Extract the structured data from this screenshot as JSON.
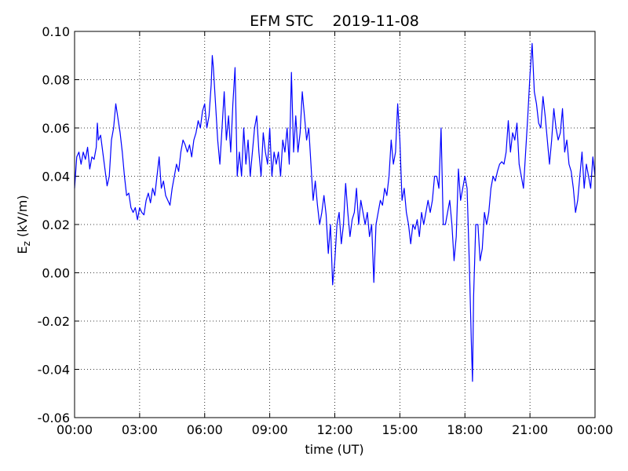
{
  "chart_data": {
    "type": "line",
    "title": "EFM STC    2019-11-08",
    "xlabel": "time (UT)",
    "ylabel": {
      "base": "E",
      "sub": "z",
      "rest": " (kV/m)"
    },
    "color": "#0000ff",
    "grid": true,
    "xlim": [
      0,
      24
    ],
    "xticks": [
      {
        "value": 0,
        "label": "00:00"
      },
      {
        "value": 3,
        "label": "03:00"
      },
      {
        "value": 6,
        "label": "06:00"
      },
      {
        "value": 9,
        "label": "09:00"
      },
      {
        "value": 12,
        "label": "12:00"
      },
      {
        "value": 15,
        "label": "15:00"
      },
      {
        "value": 18,
        "label": "18:00"
      },
      {
        "value": 21,
        "label": "21:00"
      },
      {
        "value": 24,
        "label": "00:00"
      }
    ],
    "ylim": [
      -0.06,
      0.1
    ],
    "yticks": [
      -0.06,
      -0.04,
      -0.02,
      {
        "value": 0,
        "label": "0.00"
      },
      0.02,
      0.04,
      0.06,
      0.08,
      {
        "value": 0.1,
        "label": "0.10"
      }
    ],
    "x": [
      0,
      0.1,
      0.2,
      0.3,
      0.4,
      0.5,
      0.6,
      0.7,
      0.8,
      0.9,
      1.0,
      1.05,
      1.1,
      1.2,
      1.3,
      1.4,
      1.5,
      1.6,
      1.7,
      1.8,
      1.9,
      2.0,
      2.1,
      2.2,
      2.3,
      2.4,
      2.5,
      2.6,
      2.7,
      2.8,
      2.9,
      3.0,
      3.1,
      3.2,
      3.3,
      3.4,
      3.5,
      3.6,
      3.7,
      3.8,
      3.9,
      4.0,
      4.1,
      4.2,
      4.3,
      4.4,
      4.5,
      4.6,
      4.7,
      4.8,
      4.9,
      5.0,
      5.1,
      5.2,
      5.3,
      5.4,
      5.5,
      5.6,
      5.7,
      5.8,
      5.9,
      6.0,
      6.1,
      6.2,
      6.3,
      6.35,
      6.4,
      6.5,
      6.6,
      6.7,
      6.8,
      6.9,
      7.0,
      7.1,
      7.2,
      7.3,
      7.4,
      7.5,
      7.6,
      7.7,
      7.8,
      7.9,
      8.0,
      8.1,
      8.3,
      8.4,
      8.5,
      8.6,
      8.7,
      8.8,
      8.9,
      9.0,
      9.1,
      9.2,
      9.3,
      9.4,
      9.5,
      9.6,
      9.7,
      9.8,
      9.9,
      10.0,
      10.1,
      10.2,
      10.3,
      10.4,
      10.5,
      10.6,
      10.7,
      10.8,
      10.9,
      11.0,
      11.1,
      11.2,
      11.3,
      11.4,
      11.5,
      11.6,
      11.7,
      11.8,
      11.9,
      12.0,
      12.1,
      12.2,
      12.3,
      12.4,
      12.5,
      12.6,
      12.7,
      12.8,
      12.9,
      13.0,
      13.1,
      13.2,
      13.3,
      13.4,
      13.5,
      13.6,
      13.7,
      13.8,
      13.9,
      14.0,
      14.1,
      14.2,
      14.3,
      14.4,
      14.5,
      14.6,
      14.7,
      14.8,
      14.9,
      15.0,
      15.1,
      15.2,
      15.3,
      15.4,
      15.5,
      15.6,
      15.7,
      15.8,
      15.9,
      16.0,
      16.1,
      16.2,
      16.3,
      16.4,
      16.5,
      16.6,
      16.7,
      16.8,
      16.9,
      17.0,
      17.1,
      17.2,
      17.3,
      17.4,
      17.5,
      17.6,
      17.7,
      17.8,
      17.9,
      18.0,
      18.1,
      18.2,
      18.3,
      18.35,
      18.4,
      18.5,
      18.6,
      18.7,
      18.8,
      18.9,
      19.0,
      19.1,
      19.2,
      19.3,
      19.4,
      19.5,
      19.6,
      19.7,
      19.8,
      19.9,
      20.0,
      20.1,
      20.2,
      20.3,
      20.4,
      20.5,
      20.6,
      20.7,
      20.8,
      20.9,
      21.0,
      21.1,
      21.2,
      21.3,
      21.4,
      21.5,
      21.6,
      21.7,
      21.8,
      21.9,
      22.0,
      22.1,
      22.2,
      22.3,
      22.4,
      22.5,
      22.6,
      22.7,
      22.8,
      22.9,
      23.0,
      23.1,
      23.2,
      23.3,
      23.4,
      23.5,
      23.6,
      23.7,
      23.8,
      23.9,
      24.0
    ],
    "values": [
      0.035,
      0.048,
      0.05,
      0.045,
      0.05,
      0.047,
      0.052,
      0.043,
      0.048,
      0.047,
      0.052,
      0.062,
      0.055,
      0.057,
      0.05,
      0.043,
      0.036,
      0.04,
      0.055,
      0.06,
      0.07,
      0.064,
      0.058,
      0.05,
      0.04,
      0.032,
      0.033,
      0.027,
      0.025,
      0.027,
      0.022,
      0.027,
      0.025,
      0.024,
      0.03,
      0.033,
      0.029,
      0.035,
      0.032,
      0.04,
      0.048,
      0.035,
      0.038,
      0.032,
      0.03,
      0.028,
      0.035,
      0.04,
      0.045,
      0.042,
      0.05,
      0.055,
      0.053,
      0.05,
      0.053,
      0.048,
      0.055,
      0.058,
      0.063,
      0.06,
      0.067,
      0.07,
      0.06,
      0.065,
      0.078,
      0.09,
      0.085,
      0.07,
      0.055,
      0.045,
      0.06,
      0.075,
      0.055,
      0.065,
      0.05,
      0.07,
      0.085,
      0.04,
      0.05,
      0.04,
      0.06,
      0.045,
      0.055,
      0.04,
      0.06,
      0.065,
      0.05,
      0.04,
      0.058,
      0.05,
      0.045,
      0.06,
      0.04,
      0.05,
      0.045,
      0.05,
      0.04,
      0.055,
      0.05,
      0.06,
      0.045,
      0.083,
      0.05,
      0.065,
      0.05,
      0.058,
      0.075,
      0.065,
      0.055,
      0.06,
      0.045,
      0.03,
      0.038,
      0.028,
      0.02,
      0.025,
      0.032,
      0.024,
      0.008,
      0.02,
      -0.005,
      0.005,
      0.02,
      0.025,
      0.012,
      0.02,
      0.037,
      0.025,
      0.015,
      0.022,
      0.025,
      0.035,
      0.02,
      0.03,
      0.025,
      0.02,
      0.025,
      0.015,
      0.02,
      -0.004,
      0.02,
      0.025,
      0.03,
      0.028,
      0.035,
      0.032,
      0.04,
      0.055,
      0.045,
      0.05,
      0.07,
      0.055,
      0.03,
      0.035,
      0.025,
      0.02,
      0.012,
      0.02,
      0.018,
      0.022,
      0.015,
      0.025,
      0.02,
      0.025,
      0.03,
      0.025,
      0.03,
      0.04,
      0.04,
      0.035,
      0.06,
      0.02,
      0.02,
      0.025,
      0.03,
      0.02,
      0.005,
      0.015,
      0.043,
      0.03,
      0.035,
      0.04,
      0.035,
      0.005,
      -0.03,
      -0.045,
      -0.01,
      0.02,
      0.02,
      0.005,
      0.01,
      0.025,
      0.02,
      0.025,
      0.035,
      0.04,
      0.038,
      0.042,
      0.045,
      0.046,
      0.045,
      0.05,
      0.063,
      0.05,
      0.058,
      0.055,
      0.062,
      0.045,
      0.04,
      0.035,
      0.05,
      0.065,
      0.082,
      0.095,
      0.075,
      0.07,
      0.062,
      0.06,
      0.073,
      0.065,
      0.055,
      0.045,
      0.055,
      0.068,
      0.06,
      0.055,
      0.058,
      0.068,
      0.05,
      0.055,
      0.045,
      0.042,
      0.035,
      0.025,
      0.03,
      0.04,
      0.05,
      0.035,
      0.045,
      0.04,
      0.035,
      0.048,
      0.04
    ]
  }
}
